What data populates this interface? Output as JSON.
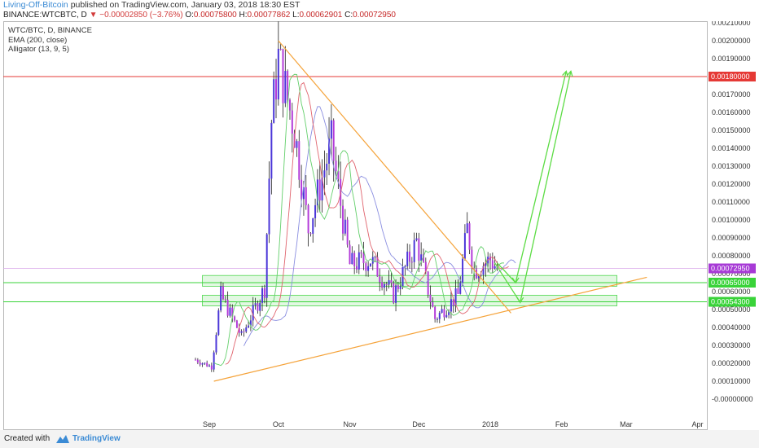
{
  "header": {
    "author": "Living-Off-Bitcoin",
    "published_text": "published on TradingView.com, January 03, 2018 18:30 EST"
  },
  "symbol": {
    "name": "BINANCE:WTCBTC, D",
    "change_arrow": "▼",
    "change": "−0.00002850 (−3.76%)",
    "o_label": "O:",
    "o": "0.00075800",
    "h_label": "H:",
    "h": "0.00077862",
    "l_label": "L:",
    "l": "0.00062901",
    "c_label": "C:",
    "c": "0.00072950"
  },
  "legend": {
    "pair": "WTC/BTC, D, BINANCE",
    "ema": "EMA (200, close)",
    "alligator": "Alligator (13, 9, 5)"
  },
  "footer": {
    "created_with": "Created with",
    "brand": "TradingView"
  },
  "colors": {
    "up_candle": "#4a35d8",
    "down_candle": "#b33ad9",
    "trendline": "#f5a33a",
    "resistance": "#e53935",
    "support": "#39d339",
    "projection": "#5cdc44",
    "last_price": "#a73ad6",
    "alligator_jaw": "#8a8ee0",
    "alligator_teeth": "#e0646e",
    "alligator_lips": "#63cf6b"
  },
  "chart_data": {
    "type": "candlestick",
    "title": "WTC/BTC, D, BINANCE",
    "y_range": [
      -0.0001,
      0.0021
    ],
    "y_ticks": [
      "-0.00000000",
      "0.00010000",
      "0.00020000",
      "0.00030000",
      "0.00040000",
      "0.00050000",
      "0.00060000",
      "0.00070000",
      "0.00080000",
      "0.00090000",
      "0.00100000",
      "0.00110000",
      "0.00120000",
      "0.00130000",
      "0.00140000",
      "0.00150000",
      "0.00160000",
      "0.00170000",
      "0.00180000",
      "0.00190000",
      "0.00200000",
      "0.00210000"
    ],
    "x_ticks": [
      "Sep",
      "Oct",
      "Nov",
      "Dec",
      "2018",
      "Feb",
      "Mar",
      "Apr"
    ],
    "price_badges": [
      {
        "label": "0.00180000",
        "price": 0.0018,
        "color": "#e53935"
      },
      {
        "label": "0.00072950",
        "price": 0.0007295,
        "color": "#a73ad6"
      },
      {
        "label": "0.00065000",
        "price": 0.00065,
        "color": "#39d339"
      },
      {
        "label": "0.00054300",
        "price": 0.000543,
        "color": "#39d339"
      }
    ],
    "horizontal_lines": [
      {
        "price": 0.0018,
        "color": "#e53935"
      },
      {
        "price": 0.00065,
        "color": "#39d339"
      },
      {
        "price": 0.000543,
        "color": "#39d339"
      }
    ],
    "zones": [
      {
        "from": 0.00063,
        "to": 0.00069
      },
      {
        "from": 0.00052,
        "to": 0.00058
      }
    ],
    "candle_anchors": [
      {
        "date": "2017-08-26",
        "price": 0.00022
      },
      {
        "date": "2017-09-02",
        "price": 0.00018
      },
      {
        "date": "2017-09-06",
        "price": 0.00058
      },
      {
        "date": "2017-09-15",
        "price": 0.00035
      },
      {
        "date": "2017-09-25",
        "price": 0.00062
      },
      {
        "date": "2017-09-28",
        "price": 0.00155
      },
      {
        "date": "2017-10-01",
        "price": 0.0019
      },
      {
        "date": "2017-10-08",
        "price": 0.0015
      },
      {
        "date": "2017-10-14",
        "price": 0.00095
      },
      {
        "date": "2017-10-24",
        "price": 0.00143
      },
      {
        "date": "2017-11-01",
        "price": 0.00075
      },
      {
        "date": "2017-11-10",
        "price": 0.00078
      },
      {
        "date": "2017-11-20",
        "price": 0.00058
      },
      {
        "date": "2017-11-30",
        "price": 0.00088
      },
      {
        "date": "2017-12-08",
        "price": 0.00045
      },
      {
        "date": "2017-12-18",
        "price": 0.00058
      },
      {
        "date": "2017-12-22",
        "price": 0.00095
      },
      {
        "date": "2017-12-25",
        "price": 0.00072
      },
      {
        "date": "2018-01-01",
        "price": 0.00078
      },
      {
        "date": "2018-01-04",
        "price": 0.0007295
      }
    ],
    "trendlines": [
      {
        "from": {
          "date": "2017-10-01",
          "price": 0.002
        },
        "to": {
          "date": "2018-01-10",
          "price": 0.00048
        }
      },
      {
        "from": {
          "date": "2017-09-03",
          "price": 0.0001
        },
        "to": {
          "date": "2018-03-10",
          "price": 0.00068
        }
      }
    ],
    "projection_paths": [
      [
        {
          "date": "2018-01-04",
          "price": 0.00076
        },
        {
          "date": "2018-01-12",
          "price": 0.00065
        },
        {
          "date": "2018-02-03",
          "price": 0.00183
        }
      ],
      [
        {
          "date": "2018-01-03",
          "price": 0.00076
        },
        {
          "date": "2018-01-14",
          "price": 0.00054
        },
        {
          "date": "2018-02-05",
          "price": 0.00183
        }
      ]
    ]
  }
}
